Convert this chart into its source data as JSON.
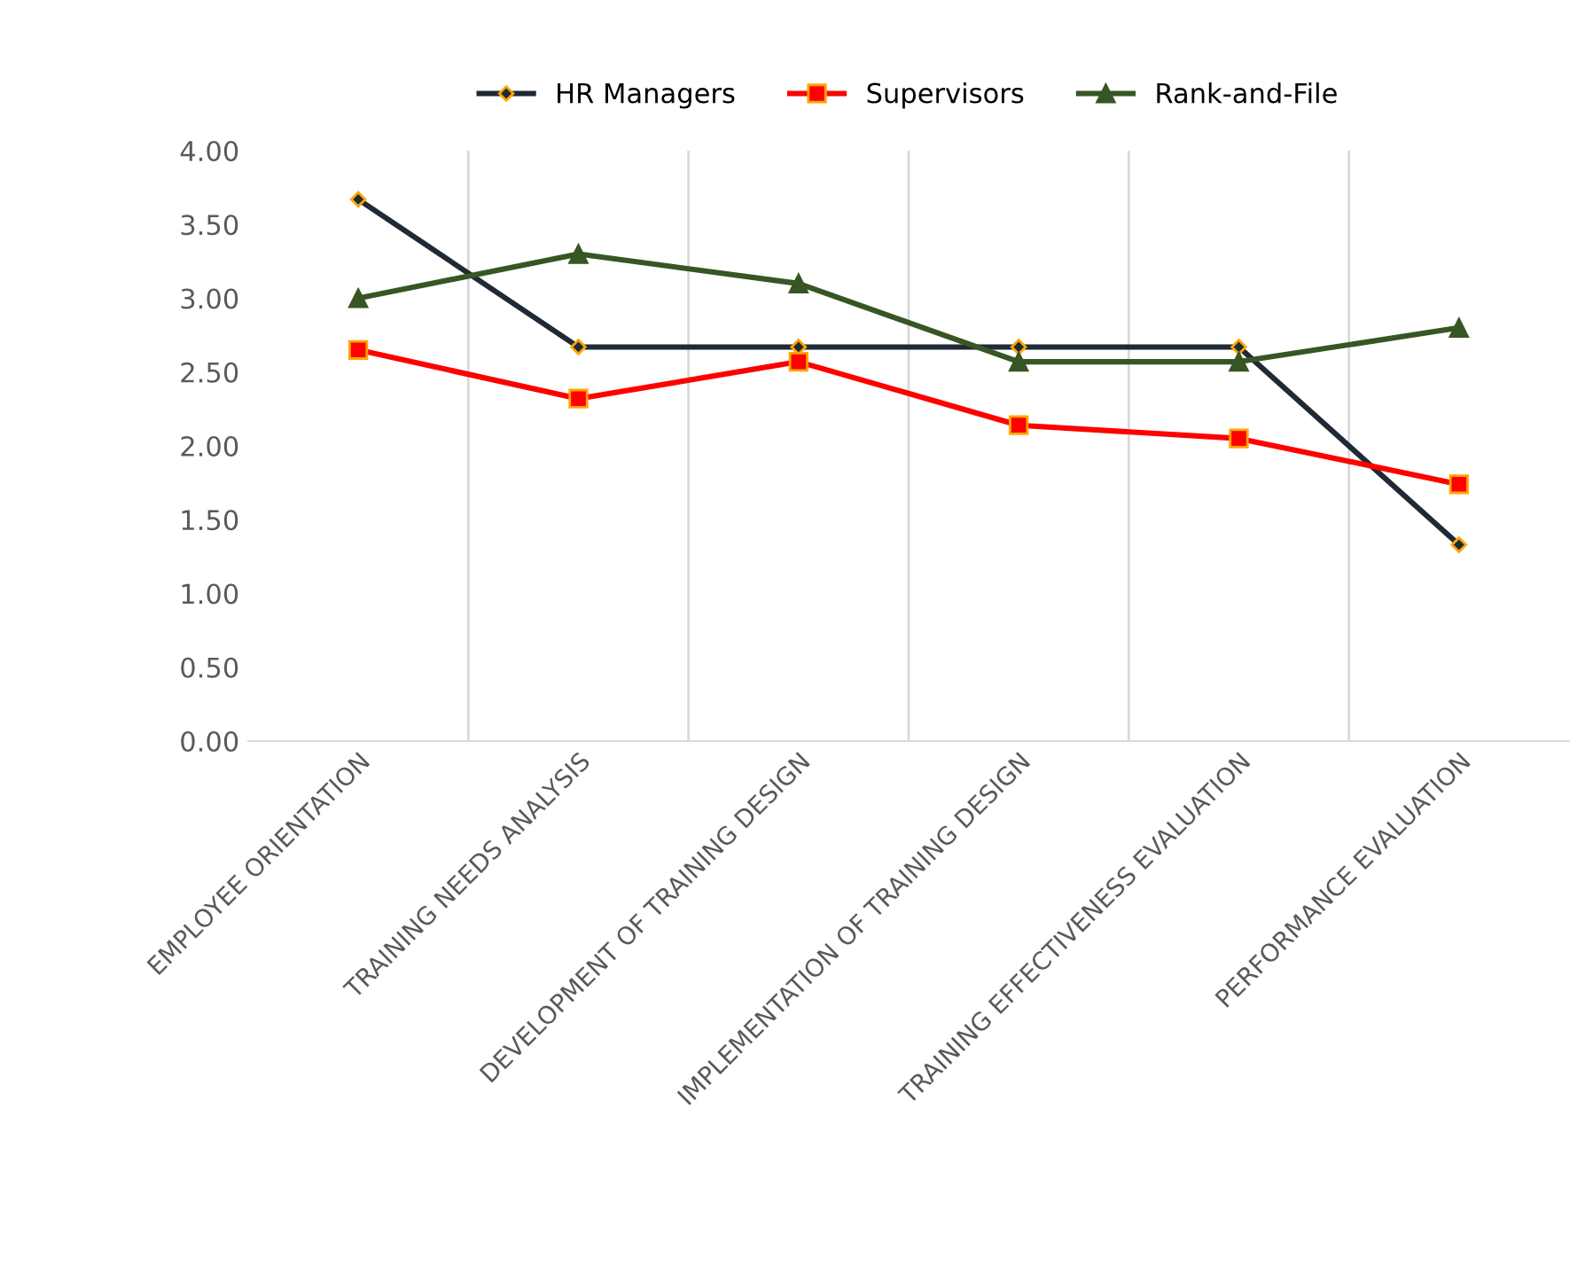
{
  "chart_data": {
    "type": "line",
    "categories": [
      "EMPLOYEE ORIENTATION",
      "TRAINING NEEDS ANALYSIS",
      "DEVELOPMENT OF TRAINING DESIGN",
      "IMPLEMENTATION OF TRAINING DESIGN",
      "TRAINING EFFECTIVENESS EVALUATION",
      "PERFORMANCE EVALUATION"
    ],
    "series": [
      {
        "name": "HR Managers",
        "color": "#1f2a36",
        "marker": "diamond",
        "values": [
          3.67,
          2.67,
          2.67,
          2.67,
          2.67,
          1.33
        ]
      },
      {
        "name": "Supervisors",
        "color": "#ff0000",
        "marker": "square",
        "values": [
          2.65,
          2.32,
          2.57,
          2.14,
          2.05,
          1.74
        ]
      },
      {
        "name": "Rank-and-File",
        "color": "#375623",
        "marker": "triangle",
        "values": [
          3.0,
          3.3,
          3.1,
          2.57,
          2.57,
          2.8
        ]
      }
    ],
    "ylim": [
      0,
      4
    ],
    "yticks": [
      {
        "value": 0,
        "label": "0.00"
      },
      {
        "value": 0.5,
        "label": "0.50"
      },
      {
        "value": 1,
        "label": "1.00"
      },
      {
        "value": 1.5,
        "label": "1.50"
      },
      {
        "value": 2,
        "label": "2.00"
      },
      {
        "value": 2.5,
        "label": "2.50"
      },
      {
        "value": 3,
        "label": "3.00"
      },
      {
        "value": 3.5,
        "label": "3.50"
      },
      {
        "value": 4,
        "label": "4.00"
      }
    ],
    "grid": "x",
    "legend": "top",
    "line_style": "solid"
  }
}
